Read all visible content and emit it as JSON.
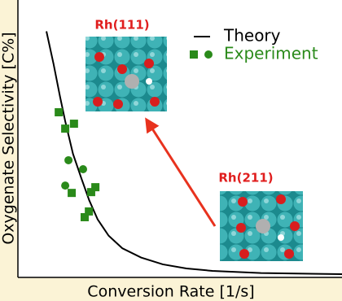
{
  "chart_data": {
    "type": "scatter",
    "xlabel": "Conversion Rate [1/s]",
    "ylabel": "Oxygenate Selectivity [C%]",
    "xlim": [
      0,
      1
    ],
    "ylim": [
      0,
      1
    ],
    "annotations": [
      {
        "text": "Rh(111)"
      },
      {
        "text": "Rh(211)"
      }
    ],
    "series": [
      {
        "name": "Theory",
        "type": "line",
        "color": "#000000",
        "x": [
          0.088,
          0.11,
          0.13,
          0.146,
          0.17,
          0.196,
          0.22,
          0.246,
          0.28,
          0.322,
          0.38,
          0.447,
          0.52,
          0.6,
          0.75,
          1.0
        ],
        "values": [
          0.9,
          0.78,
          0.66,
          0.57,
          0.45,
          0.36,
          0.28,
          0.21,
          0.15,
          0.104,
          0.07,
          0.045,
          0.03,
          0.021,
          0.013,
          0.009
        ]
      },
      {
        "name": "Experiment",
        "type": "scatter",
        "color": "#2a8a1a",
        "x": [
          0.126,
          0.146,
          0.173,
          0.166,
          0.239,
          0.226,
          0.206,
          0.219,
          0.156,
          0.201,
          0.146
        ],
        "values": [
          0.603,
          0.543,
          0.561,
          0.307,
          0.328,
          0.31,
          0.218,
          0.239,
          0.427,
          0.394,
          0.334
        ],
        "markers": [
          "square",
          "square",
          "square",
          "square",
          "square",
          "square",
          "square",
          "square",
          "circle",
          "circle",
          "circle"
        ]
      }
    ]
  }
}
